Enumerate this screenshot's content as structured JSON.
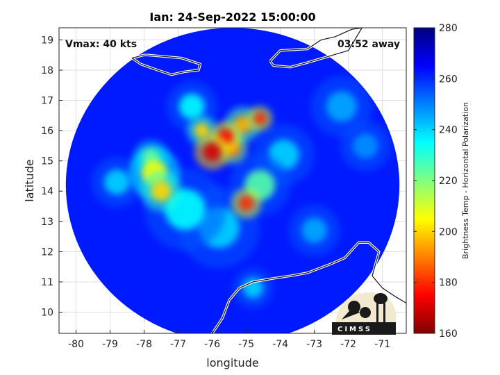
{
  "chart_data": {
    "type": "heatmap",
    "title": "Ian: 24-Sep-2022 15:00:00",
    "xlabel": "longitude",
    "ylabel": "latitude",
    "xlim": [
      -80.5,
      -70.3
    ],
    "ylim": [
      9.3,
      19.4
    ],
    "x_ticks": [
      -80,
      -79,
      -78,
      -77,
      -76,
      -75,
      -74,
      -73,
      -72,
      -71
    ],
    "y_ticks": [
      10,
      11,
      12,
      13,
      14,
      15,
      16,
      17,
      18,
      19
    ],
    "x_tick_labels": [
      "-80",
      "-79",
      "-78",
      "-77",
      "-76",
      "-75",
      "-74",
      "-73",
      "-72",
      "-71"
    ],
    "y_tick_labels": [
      "10",
      "11",
      "12",
      "13",
      "14",
      "15",
      "16",
      "17",
      "18",
      "19"
    ],
    "grid": true,
    "annotations": {
      "vmax": "Vmax: 40 kts",
      "time_away": "03:52 away"
    },
    "colorbar": {
      "label": "Brightness Temp - Horizontal Polarization",
      "min": 160,
      "max": 280,
      "ticks": [
        160,
        180,
        200,
        220,
        240,
        260,
        280
      ],
      "tick_labels": [
        "160",
        "180",
        "200",
        "220",
        "240",
        "260",
        "280"
      ],
      "colormap": "jet",
      "colors": [
        "#800000",
        "#ff0000",
        "#ff8000",
        "#ffff00",
        "#80ff80",
        "#00ffff",
        "#0080ff",
        "#0000ff",
        "#000080"
      ]
    },
    "swath": {
      "center_lon": -75.4,
      "center_lat": 14.2,
      "radius_lon": 4.9,
      "radius_lat": 5.2,
      "background_value": 262
    },
    "features": [
      {
        "lon": -76.0,
        "lat": 15.3,
        "value": 170,
        "spread": 0.35
      },
      {
        "lon": -75.6,
        "lat": 15.8,
        "value": 175,
        "spread": 0.3
      },
      {
        "lon": -75.1,
        "lat": 16.2,
        "value": 195,
        "spread": 0.35
      },
      {
        "lon": -74.6,
        "lat": 16.4,
        "value": 180,
        "spread": 0.25
      },
      {
        "lon": -75.4,
        "lat": 15.4,
        "value": 190,
        "spread": 0.3
      },
      {
        "lon": -76.3,
        "lat": 16.0,
        "value": 200,
        "spread": 0.3
      },
      {
        "lon": -77.7,
        "lat": 14.6,
        "value": 205,
        "spread": 0.5
      },
      {
        "lon": -77.5,
        "lat": 14.0,
        "value": 200,
        "spread": 0.4
      },
      {
        "lon": -77.8,
        "lat": 15.1,
        "value": 210,
        "spread": 0.35
      },
      {
        "lon": -75.0,
        "lat": 13.6,
        "value": 180,
        "spread": 0.3
      },
      {
        "lon": -74.6,
        "lat": 14.2,
        "value": 225,
        "spread": 0.6
      },
      {
        "lon": -76.8,
        "lat": 13.4,
        "value": 235,
        "spread": 0.8
      },
      {
        "lon": -75.8,
        "lat": 12.8,
        "value": 240,
        "spread": 0.8
      },
      {
        "lon": -76.6,
        "lat": 16.8,
        "value": 235,
        "spread": 0.5
      },
      {
        "lon": -73.9,
        "lat": 15.2,
        "value": 240,
        "spread": 0.6
      },
      {
        "lon": -78.8,
        "lat": 14.3,
        "value": 240,
        "spread": 0.5
      },
      {
        "lon": -72.2,
        "lat": 16.8,
        "value": 245,
        "spread": 0.6
      },
      {
        "lon": -71.5,
        "lat": 15.5,
        "value": 248,
        "spread": 0.5
      },
      {
        "lon": -73.0,
        "lat": 12.7,
        "value": 245,
        "spread": 0.5
      },
      {
        "lon": -74.8,
        "lat": 10.8,
        "value": 240,
        "spread": 0.4
      }
    ],
    "coastlines": [
      {
        "name": "jamaica",
        "points": [
          [
            -77.9,
            18.5
          ],
          [
            -77.4,
            18.45
          ],
          [
            -76.9,
            18.4
          ],
          [
            -76.35,
            18.2
          ],
          [
            -76.4,
            18.0
          ],
          [
            -76.8,
            17.95
          ],
          [
            -77.2,
            17.85
          ],
          [
            -77.6,
            18.0
          ],
          [
            -78.1,
            18.2
          ],
          [
            -78.35,
            18.4
          ],
          [
            -78.0,
            18.5
          ],
          [
            -77.9,
            18.5
          ]
        ]
      },
      {
        "name": "hispaniola",
        "points": [
          [
            -74.3,
            18.3
          ],
          [
            -74.0,
            18.65
          ],
          [
            -73.2,
            18.7
          ],
          [
            -72.8,
            19.0
          ],
          [
            -72.4,
            19.1
          ],
          [
            -71.9,
            19.35
          ],
          [
            -71.6,
            19.4
          ],
          [
            -72.0,
            18.65
          ],
          [
            -72.6,
            18.45
          ],
          [
            -73.2,
            18.25
          ],
          [
            -73.7,
            18.1
          ],
          [
            -74.2,
            18.15
          ],
          [
            -74.3,
            18.3
          ]
        ]
      },
      {
        "name": "south-america",
        "points": [
          [
            -76.0,
            9.3
          ],
          [
            -75.7,
            9.8
          ],
          [
            -75.5,
            10.4
          ],
          [
            -75.2,
            10.8
          ],
          [
            -74.8,
            11.0
          ],
          [
            -74.3,
            11.1
          ],
          [
            -73.7,
            11.2
          ],
          [
            -73.2,
            11.3
          ],
          [
            -72.5,
            11.6
          ],
          [
            -72.1,
            11.8
          ],
          [
            -71.7,
            12.3
          ],
          [
            -71.4,
            12.3
          ],
          [
            -71.1,
            12.0
          ],
          [
            -71.2,
            11.6
          ],
          [
            -71.3,
            11.2
          ],
          [
            -71.0,
            10.8
          ],
          [
            -70.6,
            10.5
          ],
          [
            -70.3,
            10.3
          ]
        ]
      }
    ]
  }
}
